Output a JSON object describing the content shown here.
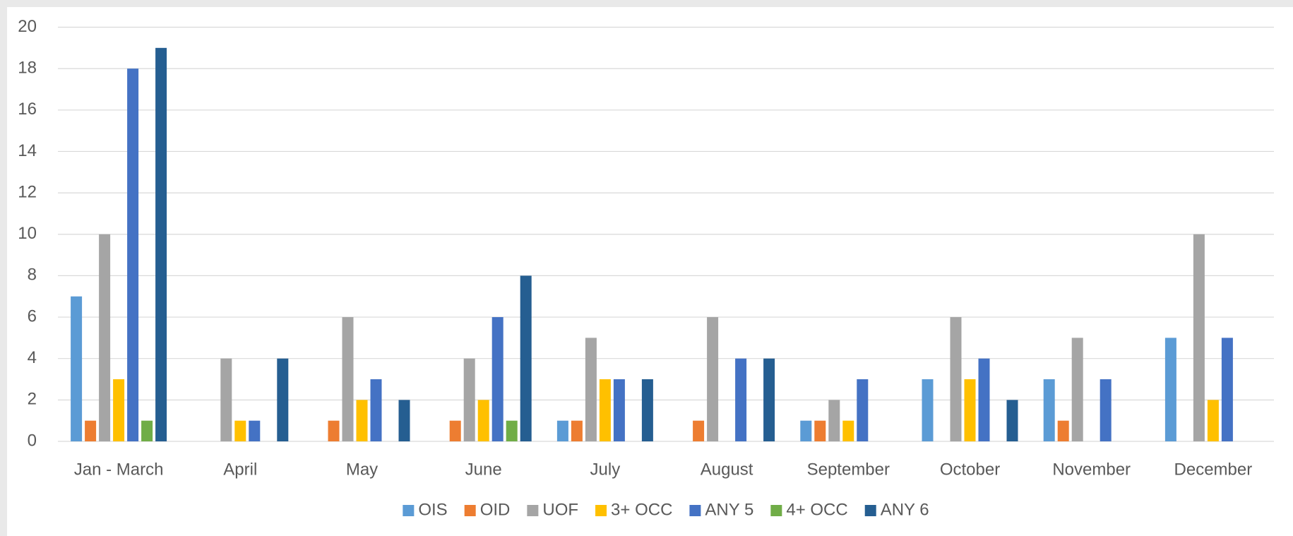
{
  "chart_data": {
    "type": "bar",
    "categories": [
      "Jan - March",
      "April",
      "May",
      "June",
      "July",
      "August",
      "September",
      "October",
      "November",
      "December"
    ],
    "series": [
      {
        "name": "OIS",
        "color": "#5b9bd5",
        "values": [
          7,
          0,
          0,
          0,
          1,
          0,
          1,
          3,
          3,
          5
        ]
      },
      {
        "name": "OID",
        "color": "#ed7d31",
        "values": [
          1,
          0,
          1,
          1,
          1,
          1,
          1,
          0,
          1,
          0
        ]
      },
      {
        "name": "UOF",
        "color": "#a5a5a5",
        "values": [
          10,
          4,
          6,
          4,
          5,
          6,
          2,
          6,
          5,
          10
        ]
      },
      {
        "name": "3+ OCC",
        "color": "#ffc000",
        "values": [
          3,
          1,
          2,
          2,
          3,
          0,
          1,
          3,
          0,
          2
        ]
      },
      {
        "name": "ANY 5",
        "color": "#4472c4",
        "values": [
          18,
          1,
          3,
          6,
          3,
          4,
          3,
          4,
          3,
          5
        ]
      },
      {
        "name": "4+ OCC",
        "color": "#70ad47",
        "values": [
          1,
          0,
          0,
          1,
          0,
          0,
          0,
          0,
          0,
          0
        ]
      },
      {
        "name": "ANY 6",
        "color": "#255e91",
        "values": [
          19,
          4,
          2,
          8,
          3,
          4,
          0,
          2,
          0,
          0
        ]
      }
    ],
    "ylim": [
      0,
      20
    ],
    "yticks": [
      0,
      2,
      4,
      6,
      8,
      10,
      12,
      14,
      16,
      18,
      20
    ],
    "grid": true,
    "legend": "bottom"
  }
}
